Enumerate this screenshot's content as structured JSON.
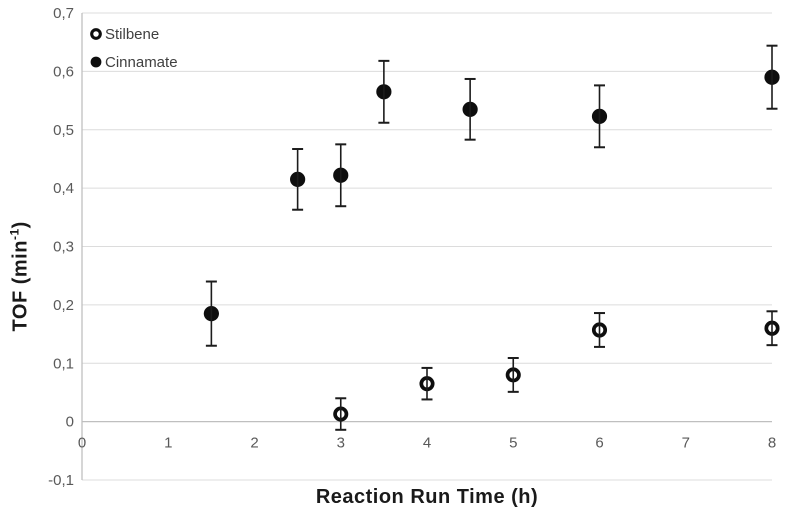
{
  "chart_data": {
    "type": "scatter",
    "title": "",
    "xlabel": "Reaction Run Time (h)",
    "ylabel": "TOF (min⁻¹)",
    "ylabel_parts": {
      "pre": "TOF (min",
      "sup": "-1",
      "post": ")"
    },
    "xlim": [
      0,
      8
    ],
    "ylim": [
      -0.1,
      0.7
    ],
    "grid": "horizontal",
    "decimal_separator": ",",
    "x_ticks": {
      "values": [
        0,
        1,
        2,
        3,
        4,
        5,
        6,
        7,
        8
      ],
      "labels": [
        "0",
        "1",
        "2",
        "3",
        "4",
        "5",
        "6",
        "7",
        "8"
      ]
    },
    "y_ticks": {
      "values": [
        0.7,
        0.6,
        0.5,
        0.4,
        0.3,
        0.2,
        0.1,
        0,
        -0.1
      ],
      "labels": [
        "0,7",
        "0,6",
        "0,5",
        "0,4",
        "0,3",
        "0,2",
        "0,1",
        "0",
        "-0,1"
      ]
    },
    "legend_position": "top-left-inside",
    "series": [
      {
        "name": "Stilbene",
        "marker": "open-circle",
        "color": "#0e0e0e",
        "x": [
          3,
          4,
          5,
          6,
          8
        ],
        "y": [
          0.013,
          0.065,
          0.08,
          0.157,
          0.16
        ],
        "yerr": [
          0.027,
          0.027,
          0.029,
          0.029,
          0.029
        ]
      },
      {
        "name": "Cinnamate",
        "marker": "filled-circle",
        "color": "#0e0e0e",
        "x": [
          1.5,
          2.5,
          3,
          3.5,
          4.5,
          6,
          8
        ],
        "y": [
          0.185,
          0.415,
          0.422,
          0.565,
          0.535,
          0.523,
          0.59
        ],
        "yerr": [
          0.055,
          0.052,
          0.053,
          0.053,
          0.052,
          0.053,
          0.054
        ]
      }
    ],
    "colors": {
      "gridline": "#dcdcdc",
      "axis_line": "#bfbfbf",
      "tick_label": "#595959",
      "legend_text": "#404040",
      "marker": "#0e0e0e",
      "error_bar": "#1c1c1c",
      "axis_title": "#1a1a1a"
    }
  }
}
